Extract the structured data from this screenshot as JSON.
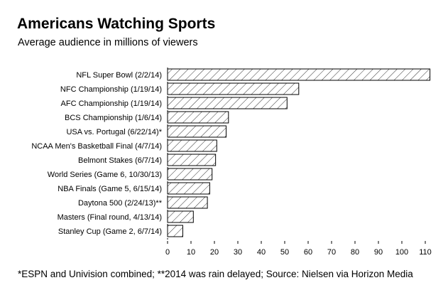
{
  "chart_data": {
    "type": "bar",
    "orientation": "horizontal",
    "title": "Americans Watching Sports",
    "subtitle": "Average audience in millions of viewers",
    "xlabel": "",
    "ylabel": "",
    "xlim": [
      0,
      112
    ],
    "grid": false,
    "categories": [
      "NFL Super Bowl (2/2/14)",
      "NFC Championship (1/19/14)",
      "AFC Championship (1/19/14)",
      "BCS Championship (1/6/14)",
      "USA vs. Portugal (6/22/14)*",
      "NCAA Men's Basketball Final (4/7/14)",
      "Belmont Stakes (6/7/14)",
      "World Series (Game 6, 10/30/13)",
      "NBA Finals (Game 5, 6/15/14)",
      "Daytona 500 (2/24/13)**",
      "Masters (Final round, 4/13/14)",
      "Stanley Cup (Game 2, 6/7/14)"
    ],
    "values": [
      112,
      56,
      51,
      26,
      25,
      21,
      20.5,
      19,
      18,
      17,
      11,
      6.5
    ],
    "x_ticks": [
      "0",
      "10",
      "20",
      "30",
      "40",
      "50",
      "60",
      "70",
      "80",
      "90",
      "100",
      "110"
    ],
    "bar_fill": "hatched",
    "colors": {
      "stroke": "#000000",
      "background": "#ffffff"
    }
  },
  "footnote": "*ESPN and Univision combined; **2014 was rain delayed; Source: Nielsen via Horizon Media"
}
